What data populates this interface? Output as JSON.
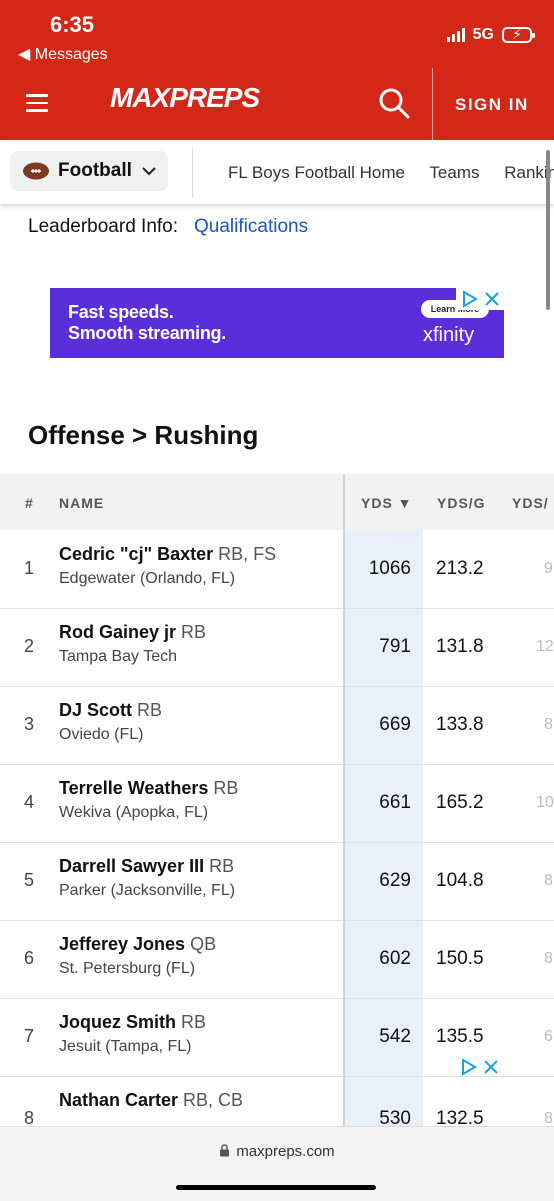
{
  "status_bar": {
    "time": "6:35",
    "back_label": "◀ Messages",
    "network": "5G"
  },
  "header": {
    "brand": "MAXPREPS",
    "signin_label": "SIGN IN"
  },
  "sports_bar": {
    "sport": "Football",
    "links": [
      "FL Boys Football Home",
      "Teams",
      "Rankin"
    ]
  },
  "leaderboard": {
    "label": "Leaderboard Info:",
    "link": "Qualifications"
  },
  "ad": {
    "line1": "Fast speeds.",
    "line2": "Smooth streaming.",
    "cta": "Learn More",
    "brand": "xfinity"
  },
  "section_title": "Offense > Rushing",
  "table": {
    "headers": {
      "rank": "#",
      "name": "NAME",
      "yds": "YDS ▼",
      "ydsg": "YDS/G",
      "extra": "YDS/"
    },
    "rows": [
      {
        "rank": "1",
        "name": "Cedric \"cj\" Baxter",
        "pos": "RB, FS",
        "school": "Edgewater (Orlando, FL)",
        "yds": "1066",
        "ydsg": "213.2",
        "extra": "9"
      },
      {
        "rank": "2",
        "name": "Rod Gainey jr",
        "pos": "RB",
        "school": "Tampa Bay Tech",
        "yds": "791",
        "ydsg": "131.8",
        "extra": "12"
      },
      {
        "rank": "3",
        "name": "DJ Scott",
        "pos": "RB",
        "school": "Oviedo (FL)",
        "yds": "669",
        "ydsg": "133.8",
        "extra": "8"
      },
      {
        "rank": "4",
        "name": "Terrelle Weathers",
        "pos": "RB",
        "school": "Wekiva (Apopka, FL)",
        "yds": "661",
        "ydsg": "165.2",
        "extra": "10"
      },
      {
        "rank": "5",
        "name": "Darrell Sawyer III",
        "pos": "RB",
        "school": "Parker (Jacksonville, FL)",
        "yds": "629",
        "ydsg": "104.8",
        "extra": "8"
      },
      {
        "rank": "6",
        "name": "Jefferey Jones",
        "pos": "QB",
        "school": "St. Petersburg (FL)",
        "yds": "602",
        "ydsg": "150.5",
        "extra": "8"
      },
      {
        "rank": "7",
        "name": "Joquez Smith",
        "pos": "RB",
        "school": "Jesuit (Tampa, FL)",
        "yds": "542",
        "ydsg": "135.5",
        "extra": "6"
      },
      {
        "rank": "8",
        "name": "Nathan Carter",
        "pos": "RB, CB",
        "school": "",
        "yds": "530",
        "ydsg": "132.5",
        "extra": "8"
      }
    ]
  },
  "browser": {
    "url": "maxpreps.com"
  },
  "colors": {
    "brand_red": "#d32718",
    "link_blue": "#1a55c4",
    "ad_purple": "#5a2fd9"
  }
}
